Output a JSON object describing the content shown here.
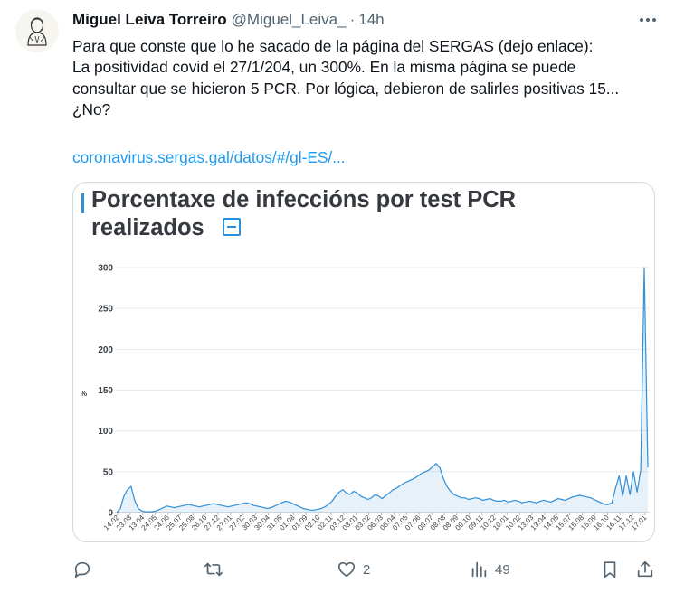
{
  "tweet": {
    "author_name": "Miguel Leiva Torreiro",
    "author_handle": "@Miguel_Leiva_",
    "separator": "·",
    "time": "14h",
    "text_lines": [
      "Para que conste que lo he sacado de la página del SERGAS (dejo enlace):",
      "La positividad covid el 27/1/204, un 300%. En la misma página se puede",
      "consultar que se hicieron 5 PCR. Por lógica, debieron de salirles positivas 15...",
      "¿No?"
    ],
    "link_text": "coronavirus.sergas.gal/datos/#/gl-ES/..."
  },
  "media": {
    "title_lines": [
      "Porcentaxe de infeccións por test PCR",
      "realizados"
    ]
  },
  "chart_data": {
    "type": "line",
    "ylabel": "%",
    "ylim": [
      0,
      300
    ],
    "yticks": [
      0,
      50,
      100,
      150,
      200,
      250,
      300
    ],
    "color": "#2f8fd8",
    "x_tick_labels": [
      "14.02",
      "23.03",
      "13.04",
      "24.05",
      "24.06",
      "25.07",
      "25.08",
      "26.10",
      "27.12",
      "27.01",
      "27.02",
      "30.03",
      "30.04",
      "31.05",
      "01.08",
      "01.09",
      "02.10",
      "02.11",
      "03.12",
      "03.01",
      "03.02",
      "06.03",
      "06.04",
      "07.05",
      "07.06",
      "08.07",
      "08.08",
      "08.09",
      "09.10",
      "09.11",
      "10.12",
      "10.01",
      "10.02",
      "13.03",
      "13.04",
      "14.05",
      "15.07",
      "15.08",
      "15.09",
      "16.10",
      "16.11",
      "17.12",
      "17.01"
    ],
    "series": [
      {
        "values": [
          0,
          5,
          20,
          28,
          32,
          15,
          5,
          2,
          1,
          1,
          1,
          2,
          4,
          6,
          8,
          7,
          6,
          7,
          8,
          9,
          10,
          9,
          8,
          7,
          8,
          9,
          10,
          11,
          10,
          9,
          8,
          7,
          8,
          9,
          10,
          11,
          12,
          11,
          9,
          8,
          7,
          6,
          5,
          6,
          8,
          10,
          12,
          14,
          13,
          11,
          9,
          7,
          5,
          4,
          3,
          3,
          4,
          5,
          7,
          10,
          14,
          20,
          25,
          28,
          24,
          22,
          26,
          24,
          20,
          18,
          16,
          18,
          22,
          20,
          17,
          21,
          24,
          28,
          30,
          33,
          36,
          38,
          40,
          42,
          45,
          48,
          50,
          52,
          56,
          60,
          55,
          42,
          32,
          26,
          22,
          20,
          18,
          18,
          16,
          17,
          18,
          17,
          15,
          16,
          17,
          15,
          14,
          14,
          15,
          13,
          14,
          15,
          14,
          12,
          13,
          14,
          13,
          12,
          14,
          15,
          14,
          13,
          15,
          17,
          16,
          15,
          17,
          19,
          20,
          21,
          20,
          19,
          18,
          16,
          14,
          12,
          10,
          10,
          12,
          30,
          45,
          20,
          45,
          22,
          50,
          25,
          52,
          300,
          55
        ]
      }
    ]
  },
  "actions": {
    "reply_count": "",
    "retweet_count": "",
    "like_count": "2",
    "views_count": "49"
  }
}
